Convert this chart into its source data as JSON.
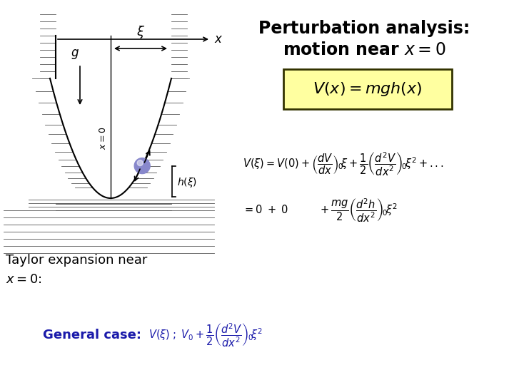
{
  "background_color": "#ffffff",
  "title_line1": "Perturbation analysis:",
  "title_line2": "motion near $x = \\mathit{0}$",
  "title_fontsize": 17,
  "box_formula": "$V(x) = mgh(x)$",
  "box_bg": "#ffffa0",
  "box_border": "#333300",
  "taylor_formula": "$V(\\xi)=V(0)+\\left(\\dfrac{dV}{dx}\\right)_{\\!0}\\xi+\\dfrac{1}{2}\\left(\\dfrac{d^2V}{dx^2}\\right)_{\\!0}\\xi^2+...$",
  "simplified_formula": "$=0\\;+\\;0\\qquad+\\dfrac{mg}{2}\\left(\\dfrac{d^2h}{dx^2}\\right)_{\\!0}\\xi^2$",
  "general_label": "General case:",
  "general_formula": "$V(\\xi)\\;; V_0+\\dfrac{1}{2}\\left(\\dfrac{d^2V}{dx^2}\\right)_{\\!0}\\xi^2$",
  "taylor_label_line1": "Taylor expansion near",
  "taylor_label_line2": "$x = \\mathit{0}$:",
  "label_fontsize": 13,
  "formula_fontsize": 10.5,
  "general_color": "#1a1aaa",
  "hatch_color": "#555555",
  "bowl_color": "#000000"
}
